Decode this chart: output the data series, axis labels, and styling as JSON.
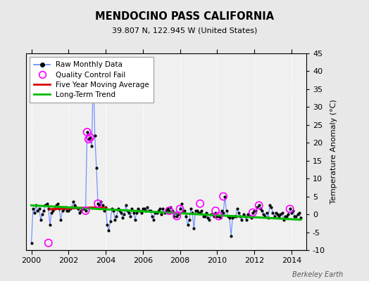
{
  "title": "MENDOCINO PASS CALIFORNIA",
  "subtitle": "39.807 N, 122.945 W (United States)",
  "ylabel_right": "Temperature Anomaly (°C)",
  "credit": "Berkeley Earth",
  "ylim": [
    -10,
    45
  ],
  "xlim": [
    1999.7,
    2014.8
  ],
  "yticks": [
    -10,
    -5,
    0,
    5,
    10,
    15,
    20,
    25,
    30,
    35,
    40,
    45
  ],
  "xticks": [
    2000,
    2002,
    2004,
    2006,
    2008,
    2010,
    2012,
    2014
  ],
  "bg_color": "#e8e8e8",
  "plot_bg_color": "#f0f0f0",
  "raw_data": {
    "x": [
      2000.0,
      2000.083,
      2000.167,
      2000.25,
      2000.333,
      2000.417,
      2000.5,
      2000.583,
      2000.667,
      2000.75,
      2000.833,
      2000.917,
      2001.0,
      2001.083,
      2001.167,
      2001.25,
      2001.333,
      2001.417,
      2001.5,
      2001.583,
      2001.667,
      2001.75,
      2001.833,
      2001.917,
      2002.0,
      2002.083,
      2002.167,
      2002.25,
      2002.333,
      2002.417,
      2002.5,
      2002.583,
      2002.667,
      2002.75,
      2002.833,
      2002.917,
      2003.0,
      2003.083,
      2003.167,
      2003.25,
      2003.333,
      2003.417,
      2003.5,
      2003.583,
      2003.667,
      2003.75,
      2003.833,
      2003.917,
      2004.0,
      2004.083,
      2004.167,
      2004.25,
      2004.333,
      2004.417,
      2004.5,
      2004.583,
      2004.667,
      2004.75,
      2004.833,
      2004.917,
      2005.0,
      2005.083,
      2005.167,
      2005.25,
      2005.333,
      2005.417,
      2005.5,
      2005.583,
      2005.667,
      2005.75,
      2005.833,
      2005.917,
      2006.0,
      2006.083,
      2006.167,
      2006.25,
      2006.333,
      2006.417,
      2006.5,
      2006.583,
      2006.667,
      2006.75,
      2006.833,
      2006.917,
      2007.0,
      2007.083,
      2007.167,
      2007.25,
      2007.333,
      2007.417,
      2007.5,
      2007.583,
      2007.667,
      2007.75,
      2007.833,
      2007.917,
      2008.0,
      2008.083,
      2008.167,
      2008.25,
      2008.333,
      2008.417,
      2008.5,
      2008.583,
      2008.667,
      2008.75,
      2008.833,
      2008.917,
      2009.0,
      2009.083,
      2009.167,
      2009.25,
      2009.333,
      2009.417,
      2009.5,
      2009.583,
      2009.667,
      2009.75,
      2009.833,
      2009.917,
      2010.0,
      2010.083,
      2010.167,
      2010.25,
      2010.333,
      2010.417,
      2010.5,
      2010.583,
      2010.667,
      2010.75,
      2010.833,
      2010.917,
      2011.0,
      2011.083,
      2011.167,
      2011.25,
      2011.333,
      2011.417,
      2011.5,
      2011.583,
      2011.667,
      2011.75,
      2011.833,
      2011.917,
      2012.0,
      2012.083,
      2012.167,
      2012.25,
      2012.333,
      2012.417,
      2012.5,
      2012.583,
      2012.667,
      2012.75,
      2012.833,
      2012.917,
      2013.0,
      2013.083,
      2013.167,
      2013.25,
      2013.333,
      2013.417,
      2013.5,
      2013.583,
      2013.667,
      2013.75,
      2013.833,
      2013.917,
      2014.0,
      2014.083,
      2014.167,
      2014.25,
      2014.333,
      2014.417,
      2014.5
    ],
    "y": [
      -8.0,
      1.5,
      0.5,
      2.5,
      1.0,
      1.5,
      -1.5,
      0.0,
      1.0,
      2.5,
      3.0,
      1.5,
      -3.0,
      0.5,
      1.0,
      1.5,
      2.5,
      3.0,
      1.5,
      -1.5,
      1.0,
      1.5,
      2.0,
      1.0,
      1.0,
      1.5,
      2.0,
      3.5,
      2.5,
      2.0,
      1.5,
      0.5,
      1.0,
      1.5,
      1.5,
      1.0,
      23.0,
      21.0,
      21.5,
      19.0,
      40.0,
      22.0,
      13.0,
      3.0,
      2.5,
      3.5,
      2.5,
      1.0,
      2.0,
      -3.0,
      -4.5,
      -2.0,
      1.5,
      1.0,
      -1.5,
      -0.5,
      1.5,
      1.0,
      0.5,
      -1.0,
      0.0,
      2.5,
      1.0,
      0.5,
      -0.5,
      1.5,
      0.5,
      -1.5,
      0.5,
      1.5,
      1.0,
      0.5,
      1.5,
      1.5,
      1.0,
      2.0,
      1.0,
      1.0,
      -0.5,
      -1.5,
      0.5,
      0.5,
      1.0,
      1.5,
      0.0,
      1.5,
      0.5,
      1.0,
      1.5,
      1.0,
      2.0,
      1.0,
      -0.5,
      0.5,
      -0.5,
      0.0,
      1.5,
      3.0,
      1.0,
      1.0,
      -0.5,
      -3.0,
      -1.5,
      1.5,
      0.5,
      -4.0,
      1.0,
      1.0,
      0.5,
      0.5,
      1.0,
      -0.5,
      -0.5,
      0.5,
      -1.0,
      -1.5,
      0.0,
      0.0,
      -0.5,
      0.5,
      -0.5,
      -0.5,
      -1.0,
      1.0,
      0.5,
      5.0,
      1.0,
      -0.5,
      -1.0,
      -6.0,
      -1.0,
      -0.5,
      -0.5,
      1.5,
      0.5,
      -0.5,
      -1.5,
      0.0,
      -0.5,
      -1.5,
      0.0,
      -0.5,
      -1.0,
      0.5,
      1.0,
      1.0,
      2.0,
      2.5,
      1.5,
      1.0,
      0.0,
      -0.5,
      0.5,
      -1.0,
      2.5,
      2.0,
      0.5,
      -0.5,
      0.5,
      0.0,
      -0.5,
      0.0,
      0.5,
      -1.5,
      -0.5,
      -0.5,
      0.0,
      1.5,
      0.5,
      1.0,
      -0.5,
      -0.5,
      0.0,
      0.5,
      -1.0
    ]
  },
  "qc_fail_x": [
    2000.917,
    2002.917,
    2003.0,
    2003.083,
    2003.167,
    2003.333,
    2003.583,
    2007.417,
    2007.833,
    2008.0,
    2009.083,
    2009.917,
    2010.083,
    2010.333,
    2011.917,
    2012.25,
    2013.917
  ],
  "qc_fail_y": [
    -8.0,
    1.0,
    23.0,
    21.0,
    21.5,
    40.0,
    3.0,
    1.0,
    -0.5,
    1.5,
    3.0,
    1.0,
    -0.5,
    5.0,
    0.5,
    2.5,
    1.5
  ],
  "moving_avg_x": [
    2001.0,
    2001.25,
    2001.5,
    2001.75,
    2002.0,
    2002.25,
    2002.5,
    2002.75,
    2003.0,
    2003.25,
    2003.5,
    2003.75,
    2004.0
  ],
  "moving_avg_y": [
    1.4,
    1.5,
    1.55,
    1.6,
    1.65,
    1.7,
    1.75,
    1.8,
    1.85,
    1.9,
    1.9,
    1.85,
    1.8
  ],
  "trend_x": [
    2000.0,
    2014.5
  ],
  "trend_y": [
    2.5,
    -1.5
  ],
  "line_color": "#6688ff",
  "marker_color": "#000000",
  "qc_color": "#ff00ff",
  "moving_avg_color": "#dd0000",
  "trend_color": "#00bb00",
  "legend_loc": "upper left"
}
